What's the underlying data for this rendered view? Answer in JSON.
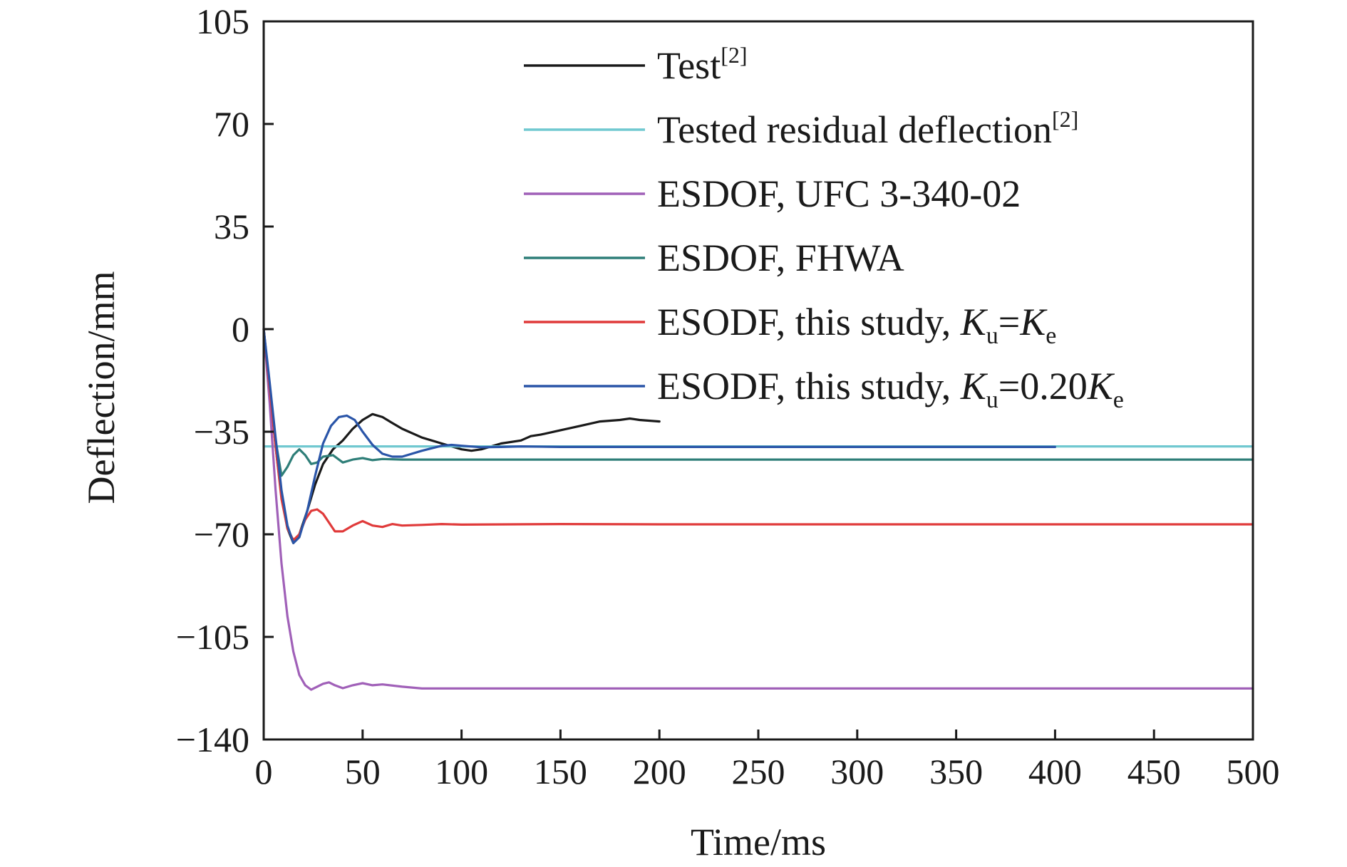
{
  "chart_data": {
    "type": "line",
    "title": "",
    "xlabel": "Time/ms",
    "ylabel": "Deflection/mm",
    "xlim": [
      0,
      500
    ],
    "ylim": [
      -140,
      105
    ],
    "xticks": [
      0,
      50,
      100,
      150,
      200,
      250,
      300,
      350,
      400,
      450,
      500
    ],
    "xtick_labels": [
      "0",
      "50",
      "100",
      "150",
      "200",
      "250",
      "300",
      "350",
      "400",
      "450",
      "500"
    ],
    "yticks": [
      105,
      70,
      35,
      0,
      -35,
      -70,
      -105,
      -140
    ],
    "ytick_labels": [
      "105",
      "70",
      "35",
      "0",
      "−35",
      "−70",
      "−105",
      "−140"
    ],
    "grid": false,
    "legend_position": "top-right",
    "series": [
      {
        "name": "Test",
        "ref": "[2]",
        "color": "#1a1a1a",
        "x": [
          0,
          3,
          6,
          9,
          12,
          15,
          18,
          22,
          26,
          30,
          35,
          40,
          45,
          50,
          55,
          60,
          65,
          70,
          80,
          90,
          100,
          105,
          110,
          115,
          120,
          130,
          135,
          140,
          150,
          160,
          170,
          180,
          185,
          190,
          200
        ],
        "y": [
          0,
          -20,
          -40,
          -57,
          -68,
          -73,
          -70,
          -62,
          -53,
          -46,
          -41,
          -38,
          -34,
          -31,
          -29,
          -30,
          -32,
          -34,
          -37,
          -39,
          -41,
          -41.5,
          -41,
          -40,
          -39,
          -38,
          -36.5,
          -36,
          -34.5,
          -33,
          -31.5,
          -31,
          -30.5,
          -31,
          -31.5
        ]
      },
      {
        "name": "Tested residual deflection",
        "ref": "[2]",
        "color": "#70c8d0",
        "x": [
          0,
          500
        ],
        "y": [
          -40,
          -40
        ]
      },
      {
        "name": "ESDOF, UFC 3-340-02",
        "ref": "",
        "color": "#a060b8",
        "x": [
          0,
          3,
          6,
          9,
          12,
          15,
          18,
          21,
          24,
          27,
          30,
          33,
          36,
          40,
          45,
          50,
          55,
          60,
          70,
          80,
          100,
          150,
          200,
          300,
          400,
          500
        ],
        "y": [
          0,
          -25,
          -55,
          -80,
          -98,
          -110,
          -118,
          -121.5,
          -123,
          -122,
          -121,
          -120.5,
          -121.5,
          -122.5,
          -121.5,
          -120.8,
          -121.5,
          -121.2,
          -122,
          -122.6,
          -122.6,
          -122.6,
          -122.6,
          -122.6,
          -122.6,
          -122.6
        ]
      },
      {
        "name": "ESDOF, FHWA",
        "ref": "",
        "color": "#2e7e78",
        "x": [
          0,
          3,
          6,
          9,
          12,
          15,
          18,
          21,
          24,
          27,
          30,
          35,
          40,
          45,
          50,
          55,
          60,
          70,
          80,
          100,
          200,
          300,
          400,
          500
        ],
        "y": [
          0,
          -20,
          -38,
          -50,
          -47,
          -43,
          -41,
          -43,
          -46,
          -45.5,
          -43.5,
          -43,
          -45.5,
          -44.5,
          -44,
          -44.7,
          -44.3,
          -44.5,
          -44.5,
          -44.5,
          -44.5,
          -44.5,
          -44.5,
          -44.5
        ]
      },
      {
        "name": "ESODF, this study, K_u=K_e",
        "ref": "",
        "color": "#e03a3a",
        "x": [
          0,
          3,
          6,
          9,
          12,
          15,
          18,
          21,
          24,
          27,
          30,
          33,
          36,
          40,
          45,
          50,
          55,
          60,
          65,
          70,
          80,
          90,
          100,
          150,
          200,
          300,
          400,
          500
        ],
        "y": [
          0,
          -20,
          -40,
          -58,
          -68,
          -72,
          -70,
          -65,
          -62,
          -61.5,
          -63,
          -66,
          -69,
          -69,
          -67,
          -65.5,
          -67,
          -67.5,
          -66.5,
          -67,
          -66.8,
          -66.5,
          -66.7,
          -66.5,
          -66.6,
          -66.6,
          -66.6,
          -66.6
        ]
      },
      {
        "name": "ESODF, this study, K_u=0.20K_e",
        "ref": "",
        "color": "#2a55a8",
        "x": [
          0,
          3,
          6,
          9,
          12,
          15,
          18,
          22,
          26,
          30,
          34,
          38,
          42,
          46,
          50,
          55,
          60,
          65,
          70,
          80,
          90,
          95,
          100,
          110,
          120,
          130,
          150,
          200,
          300,
          400
        ],
        "y": [
          0,
          -18,
          -37,
          -55,
          -67,
          -73,
          -71,
          -62,
          -50,
          -39,
          -33,
          -30,
          -29.5,
          -31,
          -35,
          -39.5,
          -42.5,
          -43.5,
          -43.5,
          -41.5,
          -39.8,
          -39.5,
          -39.8,
          -40.3,
          -40.2,
          -40,
          -40.2,
          -40.2,
          -40.2,
          -40.2
        ]
      }
    ]
  }
}
